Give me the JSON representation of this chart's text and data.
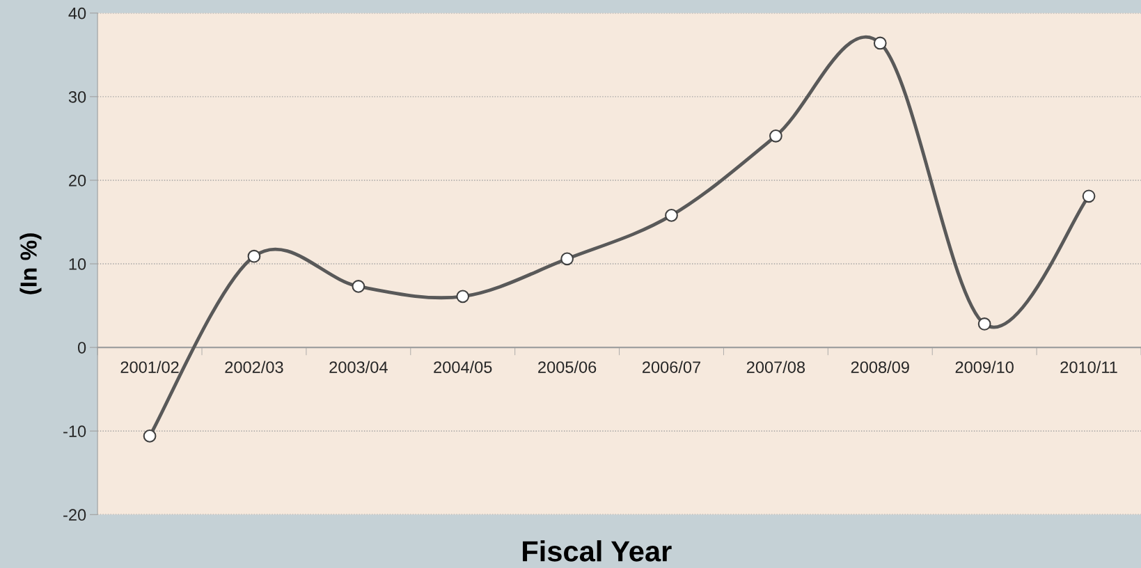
{
  "chart_data": {
    "type": "line",
    "xlabel": "Fiscal Year",
    "ylabel": "(In %)",
    "categories": [
      "2001/02",
      "2002/03",
      "2003/04",
      "2004/05",
      "2005/06",
      "2006/07",
      "2007/08",
      "2008/09",
      "2009/10",
      "2010/11"
    ],
    "series": [
      {
        "color": "#595959",
        "values": [
          -10.6,
          10.9,
          7.3,
          6.1,
          10.6,
          15.8,
          25.3,
          36.4,
          2.8,
          18.1
        ]
      }
    ],
    "ylim": [
      -20,
      40
    ],
    "yticks": [
      -20,
      -10,
      0,
      10,
      20,
      30,
      40
    ],
    "grid": "y",
    "marker": "circle",
    "line_style": "solid",
    "legend": false
  }
}
